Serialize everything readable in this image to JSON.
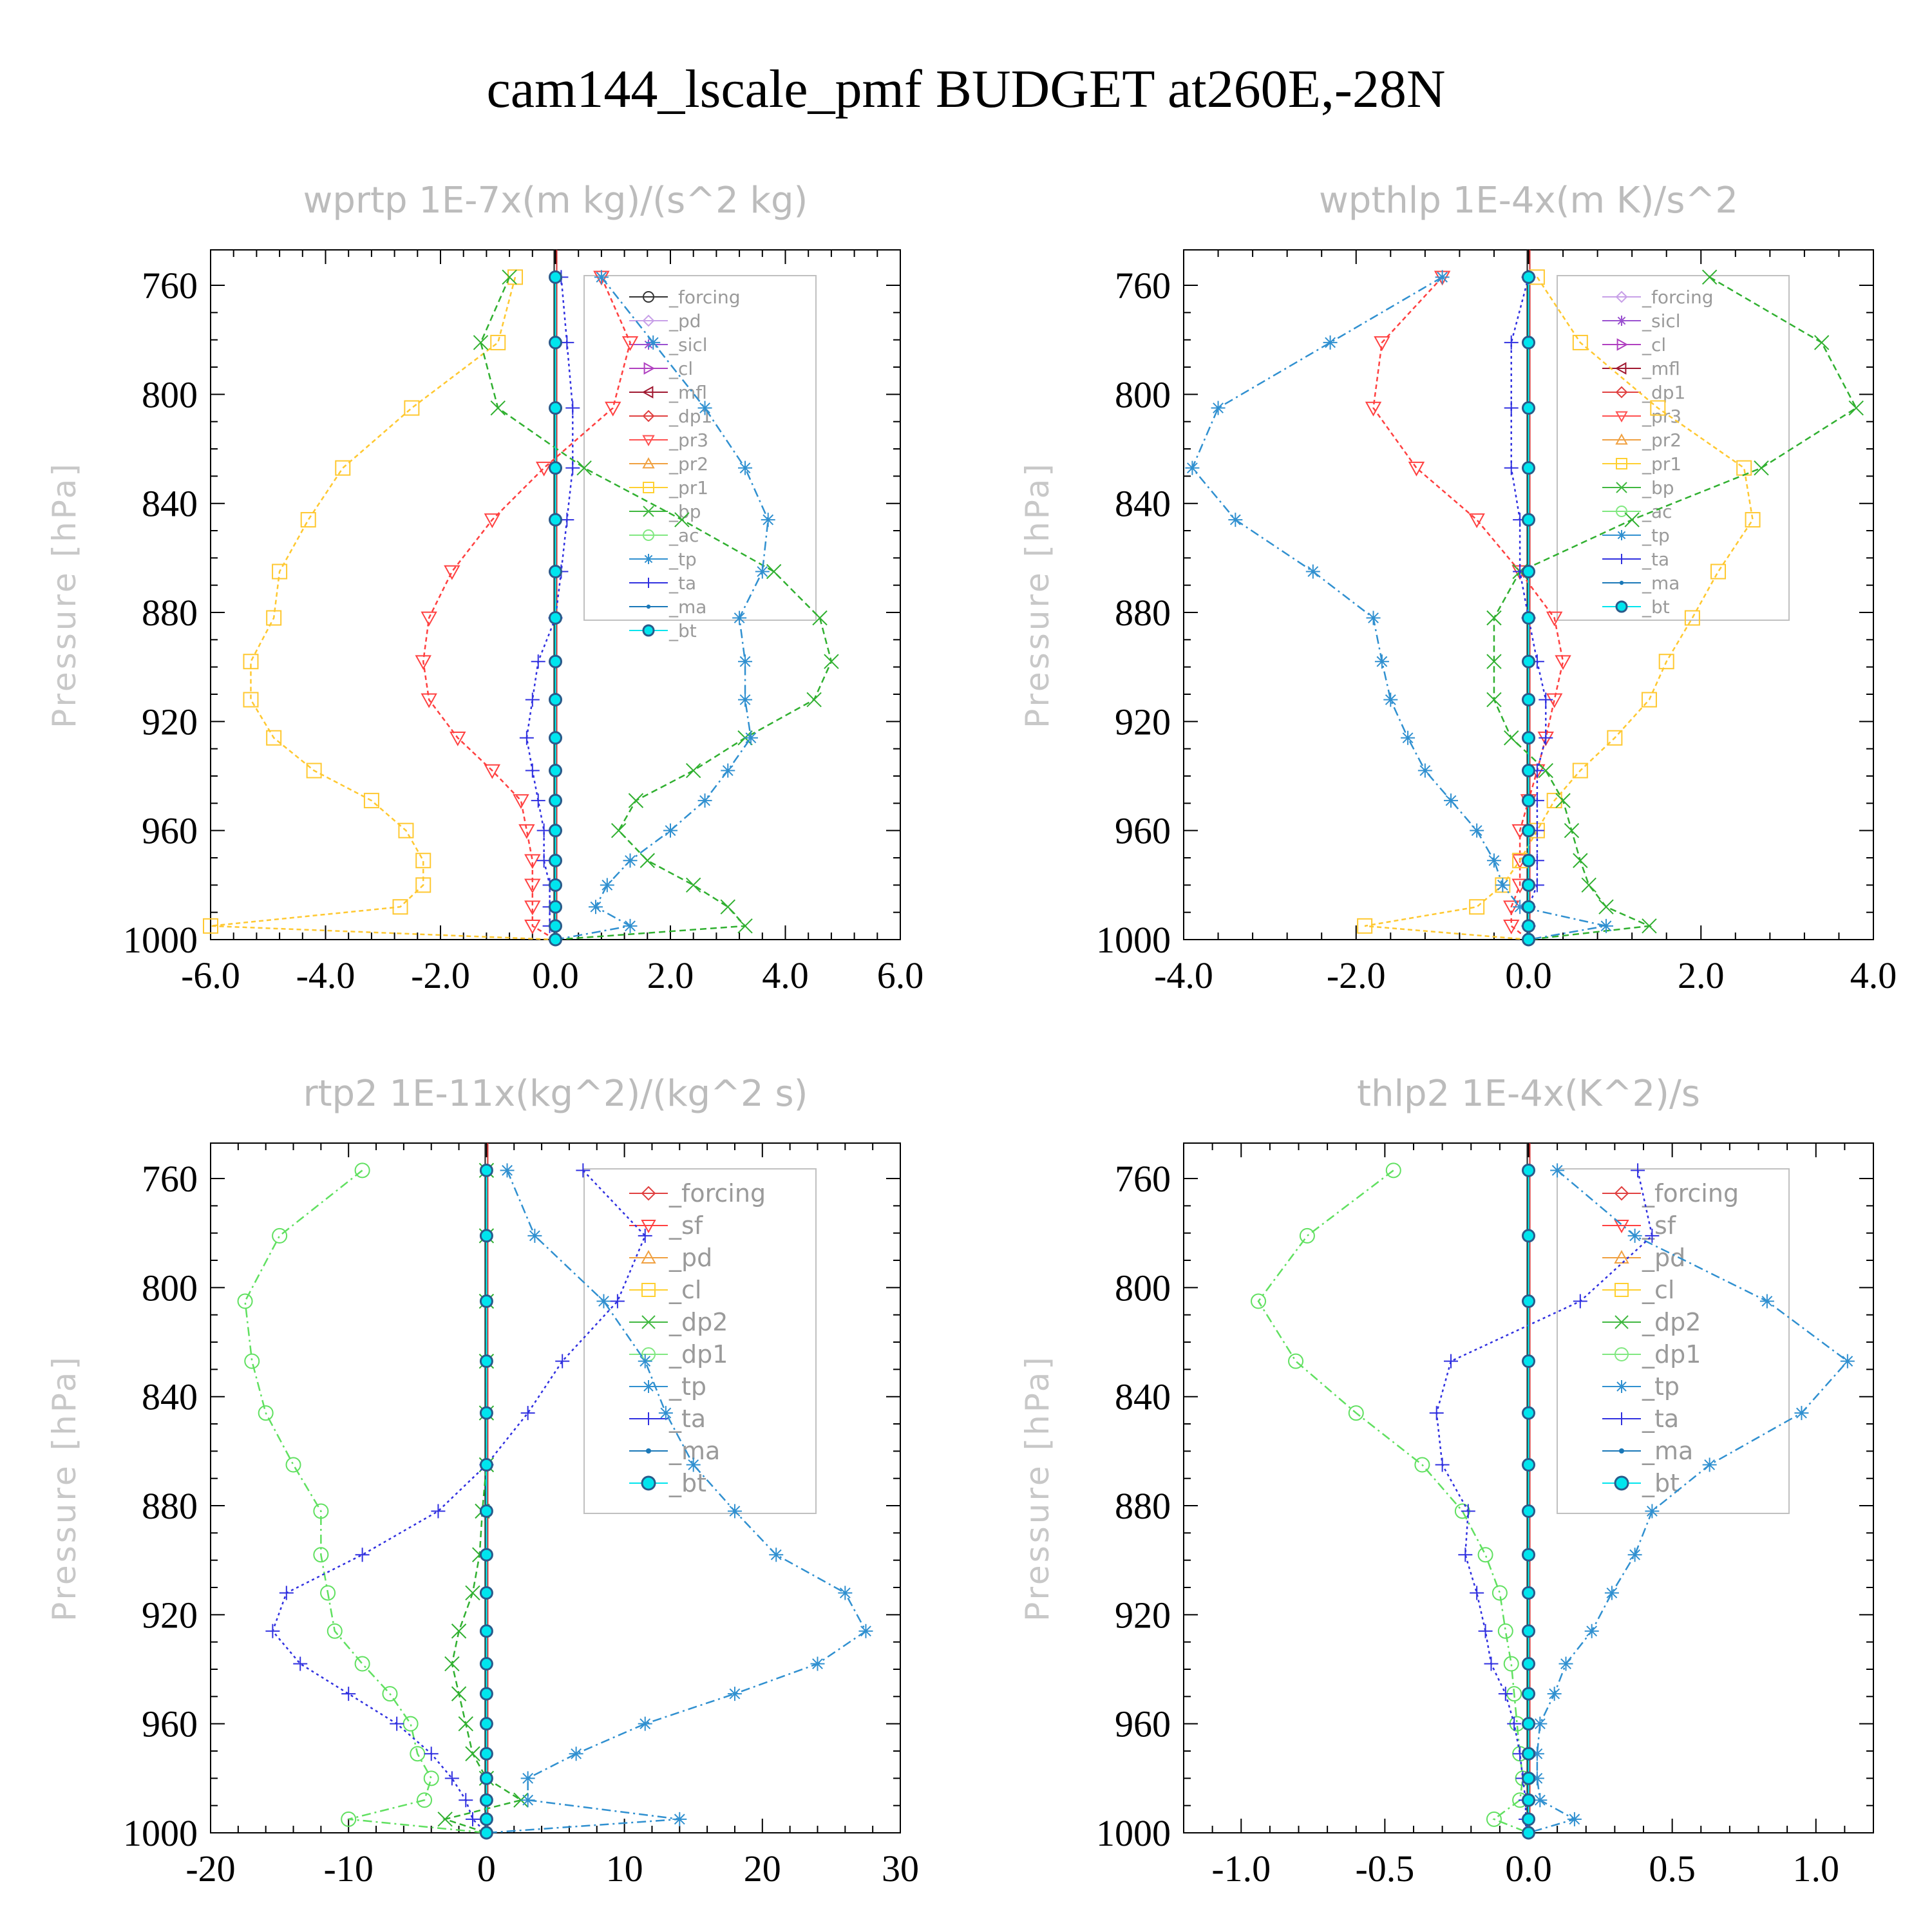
{
  "title": "cam144_lscale_pmf  BUDGET at260E,-28N",
  "chart_data": [
    {
      "type": "line",
      "title": "wprtp  1E-7x(m kg)/(s^2 kg)",
      "ylabel": "Pressure [hPa]",
      "xlim": [
        -6,
        6
      ],
      "ylim": [
        1000,
        747
      ],
      "xticks": [
        "-6.0",
        "-4.0",
        "-2.0",
        "0.0",
        "2.0",
        "4.0",
        "6.0"
      ],
      "xtick_values": [
        -6,
        -4,
        -2,
        0,
        2,
        4,
        6
      ],
      "yticks": [
        "760",
        "800",
        "840",
        "880",
        "920",
        "960",
        "1000"
      ],
      "ytick_values": [
        760,
        800,
        840,
        880,
        920,
        960,
        1000
      ],
      "p": [
        757,
        781,
        805,
        827,
        846,
        865,
        882,
        898,
        912,
        926,
        938,
        949,
        960,
        971,
        980,
        988,
        995,
        1000
      ],
      "legend": [
        {
          "name": "_forcing",
          "color": "#333333",
          "marker": "circle"
        },
        {
          "name": "_pd",
          "color": "#c8a0e8",
          "marker": "diamond"
        },
        {
          "name": "_sicl",
          "color": "#9a50d0",
          "marker": "star"
        },
        {
          "name": "_cl",
          "color": "#b040c0",
          "marker": "tri-right"
        },
        {
          "name": "_mfl",
          "color": "#a01830",
          "marker": "tri-left"
        },
        {
          "name": "_dp1",
          "color": "#e04040",
          "marker": "diamond"
        },
        {
          "name": "_pr3",
          "color": "#ff5050",
          "marker": "tri-down"
        },
        {
          "name": "_pr2",
          "color": "#f0a040",
          "marker": "tri-up"
        },
        {
          "name": "_pr1",
          "color": "#ffd030",
          "marker": "square"
        },
        {
          "name": "_bp",
          "color": "#40b840",
          "marker": "x"
        },
        {
          "name": "_ac",
          "color": "#80e880",
          "marker": "circle"
        },
        {
          "name": "_tp",
          "color": "#3090d0",
          "marker": "asterisk"
        },
        {
          "name": "_ta",
          "color": "#3030e0",
          "marker": "plus"
        },
        {
          "name": "_ma",
          "color": "#1a78b8",
          "marker": "dot"
        },
        {
          "name": "_bt",
          "color": "#00e5ee",
          "marker": "filled"
        }
      ],
      "series": [
        {
          "name": "_pr1",
          "color": "#ffc830",
          "dash": "7,5",
          "marker": "square",
          "values": [
            -0.7,
            -1.0,
            -2.5,
            -3.7,
            -4.3,
            -4.8,
            -4.9,
            -5.3,
            -5.3,
            -4.9,
            -4.2,
            -3.2,
            -2.6,
            -2.3,
            -2.3,
            -2.7,
            -6.0,
            0.0
          ]
        },
        {
          "name": "_pr3",
          "color": "#ff4040",
          "dash": "7,5",
          "marker": "tri-down",
          "values": [
            0.8,
            1.3,
            1.0,
            -0.2,
            -1.1,
            -1.8,
            -2.2,
            -2.3,
            -2.2,
            -1.7,
            -1.1,
            -0.6,
            -0.5,
            -0.4,
            -0.4,
            -0.4,
            -0.4,
            0.0
          ]
        },
        {
          "name": "_bp",
          "color": "#30b030",
          "dash": "10,6",
          "marker": "x",
          "values": [
            -0.8,
            -1.3,
            -1.0,
            0.5,
            2.2,
            3.8,
            4.6,
            4.8,
            4.5,
            3.3,
            2.4,
            1.4,
            1.1,
            1.6,
            2.4,
            3.0,
            3.3,
            0.0
          ]
        },
        {
          "name": "_tp",
          "color": "#3090d0",
          "dash": "14,6,3,6",
          "marker": "asterisk",
          "values": [
            0.8,
            1.7,
            2.6,
            3.3,
            3.7,
            3.6,
            3.2,
            3.3,
            3.3,
            3.4,
            3.0,
            2.6,
            2.0,
            1.3,
            0.9,
            0.7,
            1.3,
            0.0
          ]
        },
        {
          "name": "_ta",
          "color": "#3030e0",
          "dash": "4,5",
          "marker": "plus",
          "values": [
            0.1,
            0.2,
            0.3,
            0.3,
            0.2,
            0.1,
            0.0,
            -0.3,
            -0.4,
            -0.5,
            -0.4,
            -0.3,
            -0.2,
            -0.2,
            -0.1,
            -0.1,
            -0.1,
            0.0
          ]
        },
        {
          "name": "_bt",
          "color": "#00e5ee",
          "dash": "",
          "marker": "filled",
          "values": [
            0,
            0,
            0,
            0,
            0,
            0,
            0,
            0,
            0,
            0,
            0,
            0,
            0,
            0,
            0,
            0,
            0,
            0
          ]
        }
      ]
    },
    {
      "type": "line",
      "title": "wpthlp  1E-4x(m K)/s^2",
      "ylabel": "Pressure [hPa]",
      "xlim": [
        -4,
        4
      ],
      "ylim": [
        1000,
        747
      ],
      "xticks": [
        "-4.0",
        "-2.0",
        "0.0",
        "2.0",
        "4.0"
      ],
      "xtick_values": [
        -4,
        -2,
        0,
        2,
        4
      ],
      "yticks": [
        "760",
        "800",
        "840",
        "880",
        "920",
        "960",
        "1000"
      ],
      "ytick_values": [
        760,
        800,
        840,
        880,
        920,
        960,
        1000
      ],
      "p": [
        757,
        781,
        805,
        827,
        846,
        865,
        882,
        898,
        912,
        926,
        938,
        949,
        960,
        971,
        980,
        988,
        995,
        1000
      ],
      "legend": [
        {
          "name": "_forcing",
          "color": "#c8a0e8",
          "marker": "diamond"
        },
        {
          "name": "_sicl",
          "color": "#9a50d0",
          "marker": "star"
        },
        {
          "name": "_cl",
          "color": "#b040c0",
          "marker": "tri-right"
        },
        {
          "name": "_mfl",
          "color": "#a01830",
          "marker": "tri-left"
        },
        {
          "name": "_dp1",
          "color": "#e04040",
          "marker": "diamond"
        },
        {
          "name": "_pr3",
          "color": "#ff5050",
          "marker": "tri-down"
        },
        {
          "name": "_pr2",
          "color": "#f0a040",
          "marker": "tri-up"
        },
        {
          "name": "_pr1",
          "color": "#ffd030",
          "marker": "square"
        },
        {
          "name": "_bp",
          "color": "#40b840",
          "marker": "x"
        },
        {
          "name": "_ac",
          "color": "#80e880",
          "marker": "circle"
        },
        {
          "name": "_tp",
          "color": "#3090d0",
          "marker": "asterisk"
        },
        {
          "name": "_ta",
          "color": "#3030e0",
          "marker": "plus"
        },
        {
          "name": "_ma",
          "color": "#1a78b8",
          "marker": "dot"
        },
        {
          "name": "_bt",
          "color": "#00e5ee",
          "marker": "filled"
        }
      ],
      "series": [
        {
          "name": "_pr3",
          "color": "#ff4040",
          "dash": "7,5",
          "marker": "tri-down",
          "values": [
            -1.0,
            -1.7,
            -1.8,
            -1.3,
            -0.6,
            -0.1,
            0.3,
            0.4,
            0.3,
            0.2,
            0.1,
            0.0,
            -0.1,
            -0.1,
            -0.1,
            -0.2,
            -0.2,
            0.0
          ]
        },
        {
          "name": "_pr1",
          "color": "#ffc830",
          "dash": "7,5",
          "marker": "square",
          "values": [
            0.1,
            0.6,
            1.5,
            2.5,
            2.6,
            2.2,
            1.9,
            1.6,
            1.4,
            1.0,
            0.6,
            0.3,
            0.1,
            -0.1,
            -0.3,
            -0.6,
            -1.9,
            0.0
          ]
        },
        {
          "name": "_bp",
          "color": "#30b030",
          "dash": "10,6",
          "marker": "x",
          "values": [
            2.1,
            3.4,
            3.8,
            2.7,
            1.2,
            -0.1,
            -0.4,
            -0.4,
            -0.4,
            -0.2,
            0.2,
            0.4,
            0.5,
            0.6,
            0.7,
            0.9,
            1.4,
            0.0
          ]
        },
        {
          "name": "_tp",
          "color": "#3090d0",
          "dash": "14,6,3,6",
          "marker": "asterisk",
          "values": [
            -1.0,
            -2.3,
            -3.6,
            -3.9,
            -3.4,
            -2.5,
            -1.8,
            -1.7,
            -1.6,
            -1.4,
            -1.2,
            -0.9,
            -0.6,
            -0.4,
            -0.3,
            -0.1,
            0.9,
            0.0
          ]
        },
        {
          "name": "_ta",
          "color": "#3030e0",
          "dash": "4,5",
          "marker": "plus",
          "values": [
            0.0,
            -0.2,
            -0.2,
            -0.2,
            -0.1,
            -0.1,
            0.0,
            0.1,
            0.2,
            0.2,
            0.1,
            0.1,
            0.1,
            0.1,
            0.1,
            0.0,
            0.0,
            0.0
          ]
        },
        {
          "name": "_bt",
          "color": "#00e5ee",
          "dash": "",
          "marker": "filled",
          "values": [
            0,
            0,
            0,
            0,
            0,
            0,
            0,
            0,
            0,
            0,
            0,
            0,
            0,
            0,
            0,
            0,
            0,
            0
          ]
        }
      ]
    },
    {
      "type": "line",
      "title": "rtp2  1E-11x(kg^2)/(kg^2 s)",
      "ylabel": "Pressure [hPa]",
      "xlim": [
        -20,
        30
      ],
      "ylim": [
        1000,
        747
      ],
      "xticks": [
        "-20",
        "-10",
        "0",
        "10",
        "20",
        "30"
      ],
      "xtick_values": [
        -20,
        -10,
        0,
        10,
        20,
        30
      ],
      "yticks": [
        "760",
        "800",
        "840",
        "880",
        "920",
        "960",
        "1000"
      ],
      "ytick_values": [
        760,
        800,
        840,
        880,
        920,
        960,
        1000
      ],
      "p": [
        757,
        781,
        805,
        827,
        846,
        865,
        882,
        898,
        912,
        926,
        938,
        949,
        960,
        971,
        980,
        988,
        995,
        1000
      ],
      "legend": [
        {
          "name": "_forcing",
          "color": "#e04040",
          "marker": "diamond"
        },
        {
          "name": "_sf",
          "color": "#ff4040",
          "marker": "tri-down"
        },
        {
          "name": "_pd",
          "color": "#f0a040",
          "marker": "tri-up"
        },
        {
          "name": "_cl",
          "color": "#ffd030",
          "marker": "square"
        },
        {
          "name": "_dp2",
          "color": "#40b840",
          "marker": "x"
        },
        {
          "name": "_dp1",
          "color": "#80e880",
          "marker": "circle"
        },
        {
          "name": "_tp",
          "color": "#3090d0",
          "marker": "asterisk"
        },
        {
          "name": "_ta",
          "color": "#3030e0",
          "marker": "plus"
        },
        {
          "name": "_ma",
          "color": "#1a78b8",
          "marker": "dot"
        },
        {
          "name": "_bt",
          "color": "#00e5ee",
          "marker": "filled"
        }
      ],
      "series": [
        {
          "name": "_dp1",
          "color": "#60e060",
          "dash": "14,6,3,6",
          "marker": "circle",
          "values": [
            -9.0,
            -15.0,
            -17.5,
            -17.0,
            -16.0,
            -14.0,
            -12.0,
            -12.0,
            -11.5,
            -11.0,
            -9.0,
            -7.0,
            -5.5,
            -5.0,
            -4.0,
            -4.5,
            -10.0,
            0.0
          ]
        },
        {
          "name": "_dp2",
          "color": "#30b030",
          "dash": "10,6",
          "marker": "x",
          "values": [
            0.0,
            0.0,
            0.0,
            0.0,
            0.0,
            0.0,
            -0.3,
            -0.5,
            -1.0,
            -2.0,
            -2.5,
            -2.0,
            -1.5,
            -1.0,
            0.0,
            2.5,
            -3.0,
            0.0
          ]
        },
        {
          "name": "_tp",
          "color": "#3090d0",
          "dash": "14,6,3,6",
          "marker": "asterisk",
          "values": [
            1.5,
            3.5,
            8.5,
            11.5,
            13.0,
            15.0,
            18.0,
            21.0,
            26.0,
            27.5,
            24.0,
            18.0,
            11.5,
            6.5,
            3.0,
            3.0,
            14.0,
            0.0
          ]
        },
        {
          "name": "_ta",
          "color": "#3030e0",
          "dash": "4,5",
          "marker": "plus",
          "values": [
            7.0,
            11.5,
            9.5,
            5.5,
            3.0,
            0.0,
            -3.5,
            -9.0,
            -14.5,
            -15.5,
            -13.5,
            -10.0,
            -6.5,
            -4.0,
            -2.5,
            -1.5,
            -1.0,
            0.0
          ]
        },
        {
          "name": "_bt",
          "color": "#00e5ee",
          "dash": "",
          "marker": "filled",
          "values": [
            0,
            0,
            0,
            0,
            0,
            0,
            0,
            0,
            0,
            0,
            0,
            0,
            0,
            0,
            0,
            0,
            0,
            0
          ]
        }
      ]
    },
    {
      "type": "line",
      "title": "thlp2  1E-4x(K^2)/s",
      "ylabel": "Pressure [hPa]",
      "xlim": [
        -1.2,
        1.2
      ],
      "ylim": [
        1000,
        747
      ],
      "xticks": [
        "-1.0",
        "-0.5",
        "0.0",
        "0.5",
        "1.0"
      ],
      "xtick_values": [
        -1,
        -0.5,
        0,
        0.5,
        1
      ],
      "yticks": [
        "760",
        "800",
        "840",
        "880",
        "920",
        "960",
        "1000"
      ],
      "ytick_values": [
        760,
        800,
        840,
        880,
        920,
        960,
        1000
      ],
      "p": [
        757,
        781,
        805,
        827,
        846,
        865,
        882,
        898,
        912,
        926,
        938,
        949,
        960,
        971,
        980,
        988,
        995,
        1000
      ],
      "legend": [
        {
          "name": "_forcing",
          "color": "#e04040",
          "marker": "diamond"
        },
        {
          "name": "_sf",
          "color": "#ff4040",
          "marker": "tri-down"
        },
        {
          "name": "_pd",
          "color": "#f0a040",
          "marker": "tri-up"
        },
        {
          "name": "_cl",
          "color": "#ffd030",
          "marker": "square"
        },
        {
          "name": "_dp2",
          "color": "#40b840",
          "marker": "x"
        },
        {
          "name": "_dp1",
          "color": "#80e880",
          "marker": "circle"
        },
        {
          "name": "_tp",
          "color": "#3090d0",
          "marker": "asterisk"
        },
        {
          "name": "_ta",
          "color": "#3030e0",
          "marker": "plus"
        },
        {
          "name": "_ma",
          "color": "#1a78b8",
          "marker": "dot"
        },
        {
          "name": "_bt",
          "color": "#00e5ee",
          "marker": "filled"
        }
      ],
      "series": [
        {
          "name": "_dp1",
          "color": "#60e060",
          "dash": "14,6,3,6",
          "marker": "circle",
          "values": [
            -0.47,
            -0.77,
            -0.94,
            -0.81,
            -0.6,
            -0.37,
            -0.23,
            -0.15,
            -0.1,
            -0.08,
            -0.06,
            -0.05,
            -0.04,
            -0.03,
            -0.02,
            -0.03,
            -0.12,
            0.0
          ]
        },
        {
          "name": "_tp",
          "color": "#3090d0",
          "dash": "14,6,3,6",
          "marker": "asterisk",
          "values": [
            0.1,
            0.37,
            0.83,
            1.11,
            0.95,
            0.63,
            0.43,
            0.37,
            0.29,
            0.22,
            0.13,
            0.09,
            0.04,
            0.03,
            0.03,
            0.04,
            0.16,
            0.0
          ]
        },
        {
          "name": "_ta",
          "color": "#3030e0",
          "dash": "4,5",
          "marker": "plus",
          "values": [
            0.38,
            0.43,
            0.18,
            -0.27,
            -0.32,
            -0.3,
            -0.21,
            -0.22,
            -0.18,
            -0.15,
            -0.13,
            -0.08,
            -0.05,
            -0.03,
            -0.02,
            -0.01,
            -0.01,
            0.0
          ]
        },
        {
          "name": "_bt",
          "color": "#00e5ee",
          "dash": "",
          "marker": "filled",
          "values": [
            0,
            0,
            0,
            0,
            0,
            0,
            0,
            0,
            0,
            0,
            0,
            0,
            0,
            0,
            0,
            0,
            0,
            0
          ]
        }
      ]
    }
  ]
}
